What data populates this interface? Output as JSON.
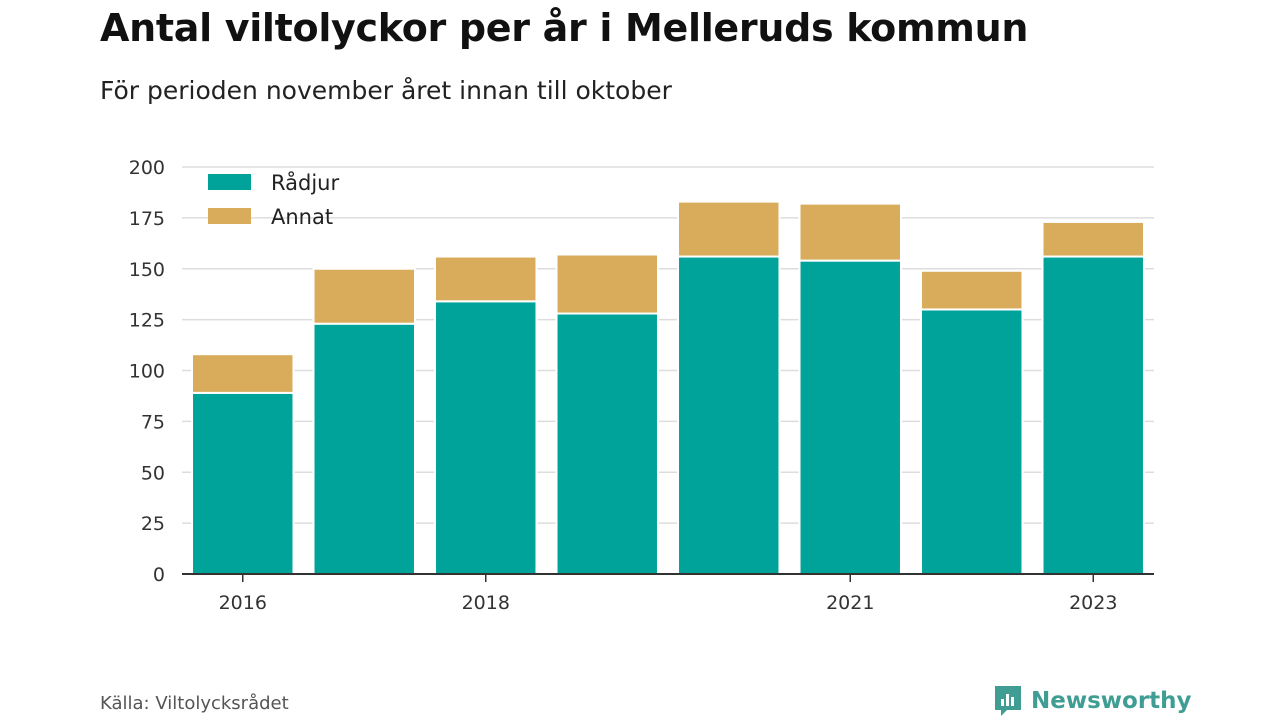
{
  "header": {
    "title": "Antal viltolyckor per år i Melleruds kommun",
    "subtitle": "För perioden november året innan till oktober"
  },
  "footer": {
    "source": "Källa: Viltolycksrådet",
    "brand": "Newsworthy",
    "brand_icon": "newsworthy-logo-icon"
  },
  "colors": {
    "radjur": "#00a39a",
    "annat": "#d8ac5a",
    "grid": "#dddddd",
    "axis": "#333333",
    "brand": "#3f9d93"
  },
  "chart_data": {
    "type": "bar",
    "stacked": true,
    "categories": [
      "2016",
      "2017",
      "2018",
      "2019",
      "2020",
      "2021",
      "2022",
      "2023"
    ],
    "x_tick_labels": [
      "2016",
      "",
      "2018",
      "",
      "",
      "2021",
      "",
      "2023"
    ],
    "series": [
      {
        "name": "Rådjur",
        "values": [
          89,
          123,
          134,
          128,
          156,
          154,
          130,
          156
        ]
      },
      {
        "name": "Annat",
        "values": [
          19,
          27,
          22,
          29,
          27,
          28,
          19,
          17
        ]
      }
    ],
    "ylim": [
      0,
      200
    ],
    "yticks": [
      0,
      25,
      50,
      75,
      100,
      125,
      150,
      175,
      200
    ],
    "grid": true,
    "legend_position": "top-left",
    "xlabel": "",
    "ylabel": ""
  }
}
